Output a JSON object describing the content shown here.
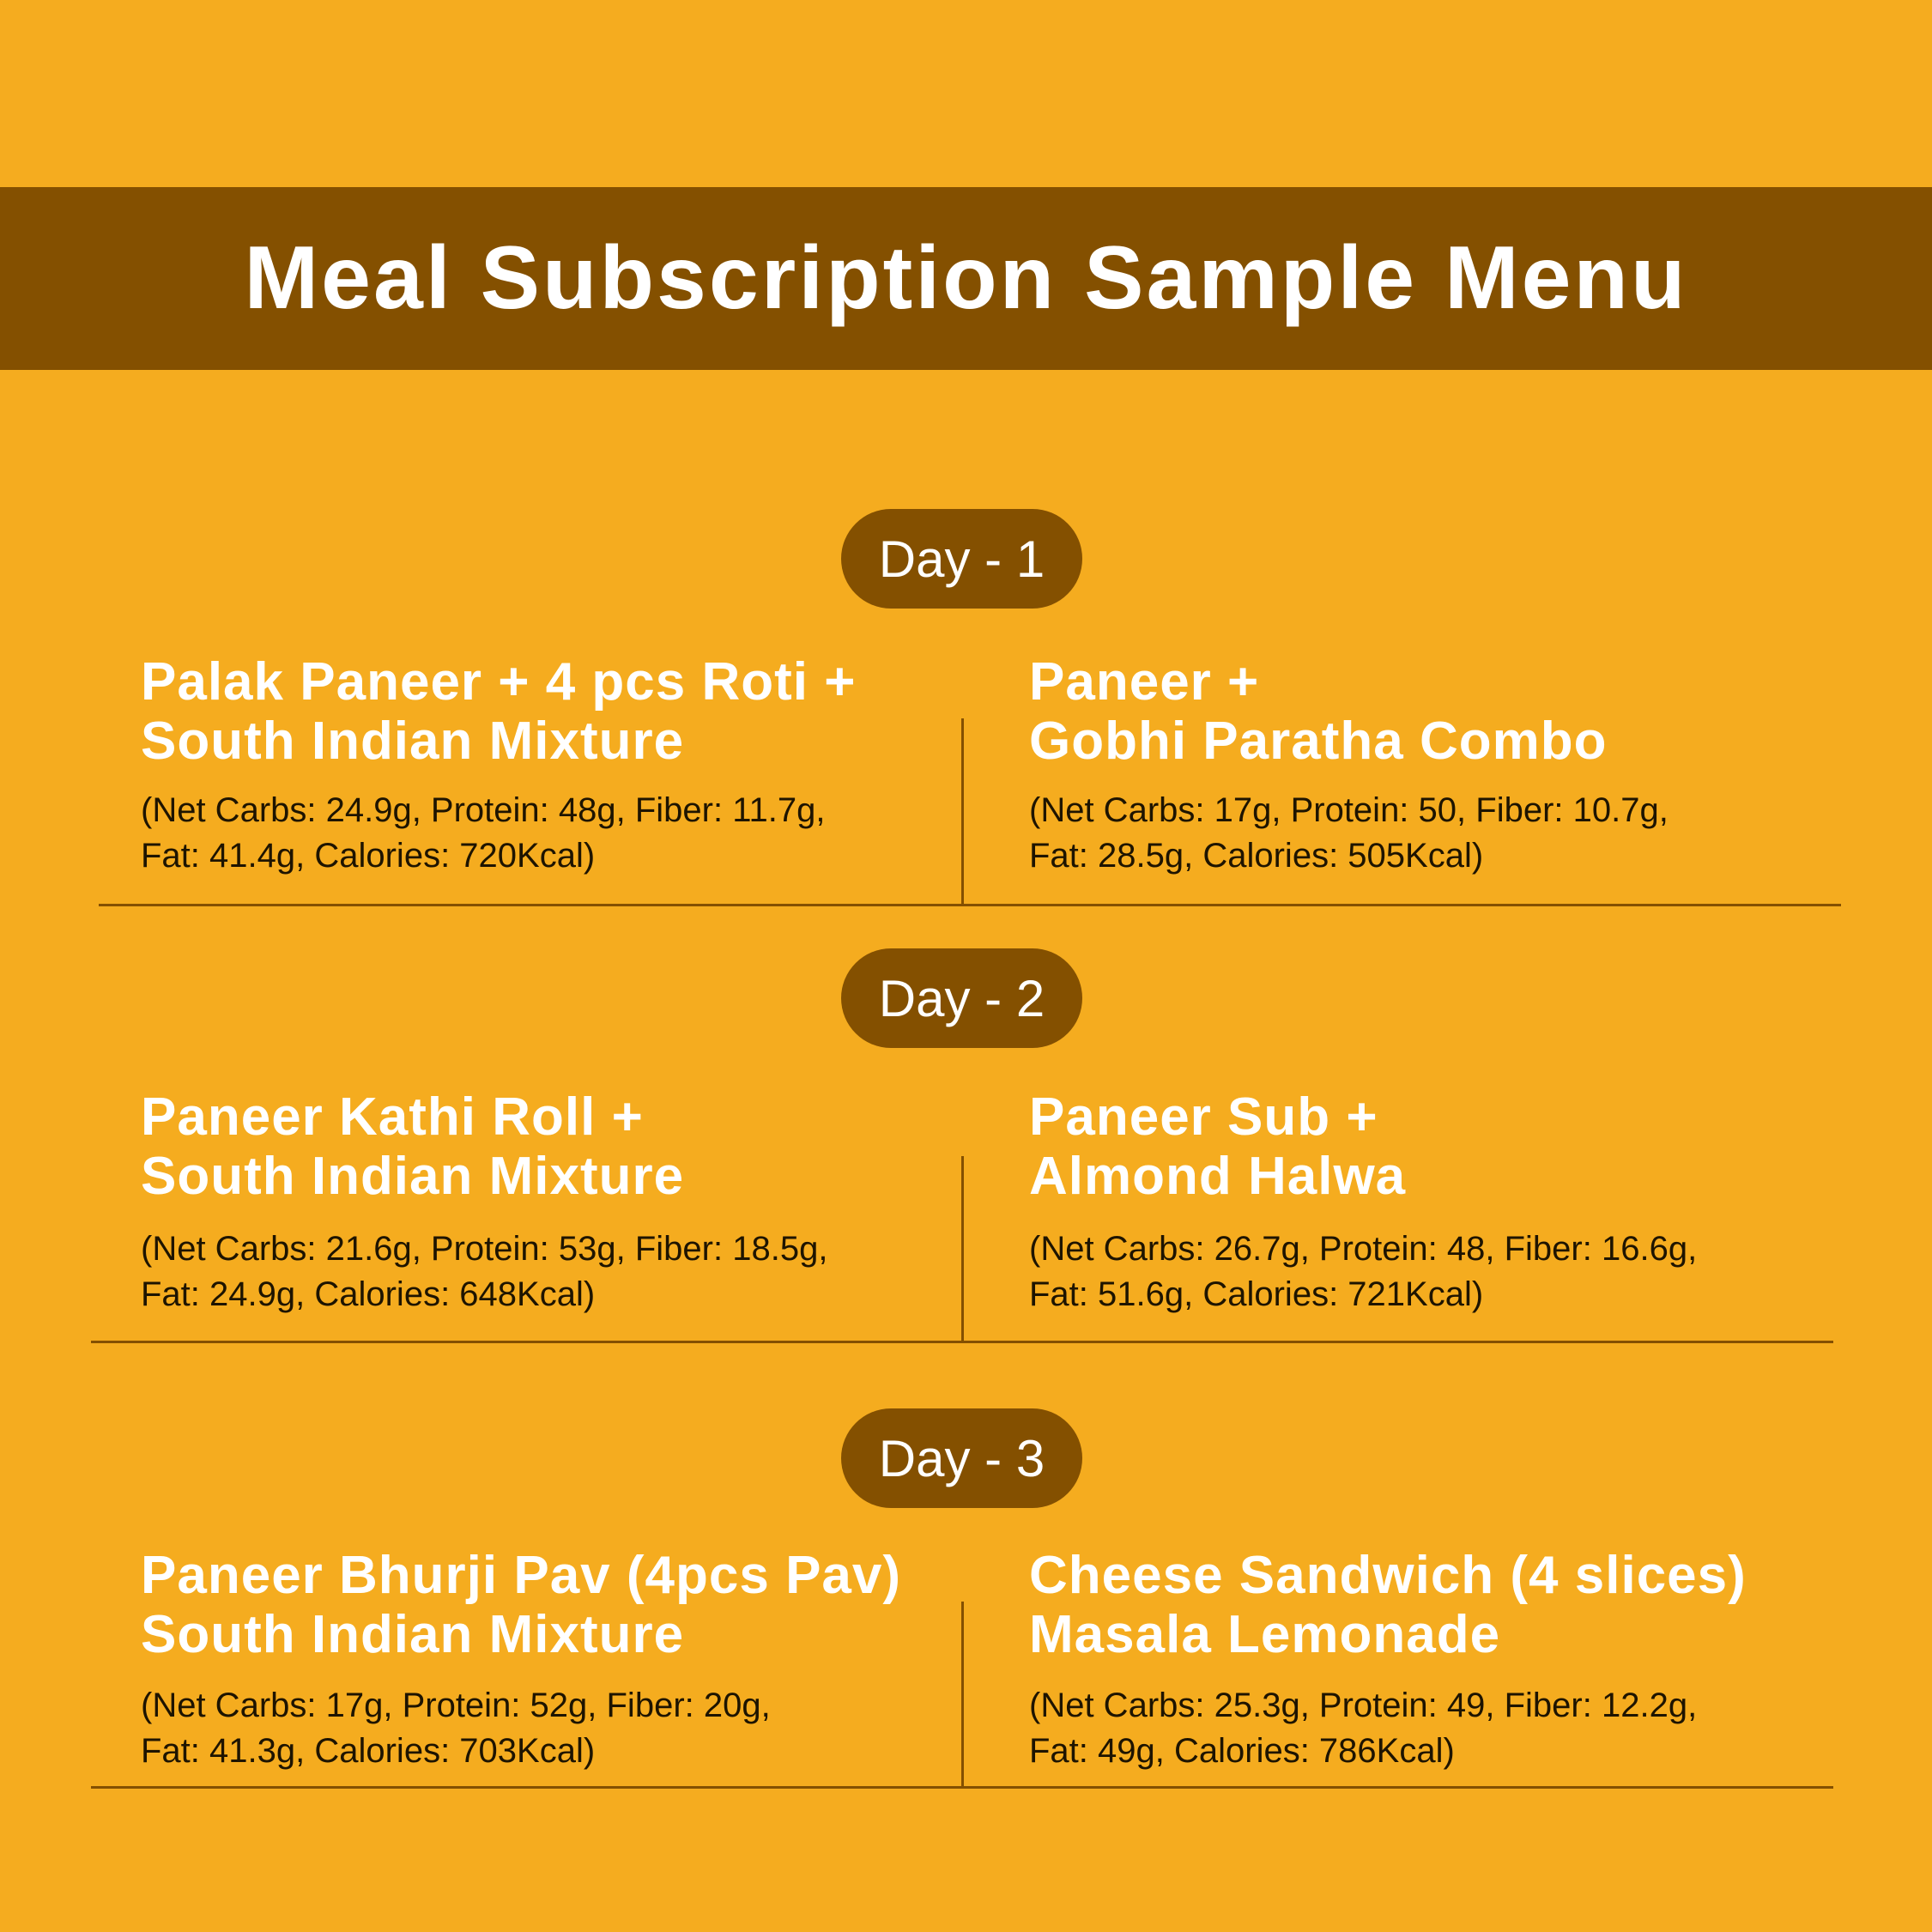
{
  "title": "Meal Subscription Sample Menu",
  "colors": {
    "background": "#F5AC1F",
    "accent": "#845000",
    "title_text": "#FFFFFF"
  },
  "days": [
    {
      "label": "Day - 1",
      "meals": [
        {
          "title_lines": [
            "Palak Paneer + 4 pcs Roti +",
            "South Indian Mixture"
          ],
          "details_lines": [
            "(Net Carbs: 24.9g, Protein: 48g, Fiber: 11.7g,",
            "Fat: 41.4g, Calories: 720Kcal)"
          ]
        },
        {
          "title_lines": [
            "Paneer +",
            "Gobhi Paratha Combo"
          ],
          "details_lines": [
            "(Net Carbs: 17g, Protein: 50, Fiber: 10.7g,",
            "Fat: 28.5g, Calories: 505Kcal)"
          ]
        }
      ]
    },
    {
      "label": "Day - 2",
      "meals": [
        {
          "title_lines": [
            "Paneer Kathi Roll +",
            "South Indian Mixture"
          ],
          "details_lines": [
            "(Net Carbs: 21.6g, Protein: 53g, Fiber: 18.5g,",
            "Fat: 24.9g, Calories: 648Kcal)"
          ]
        },
        {
          "title_lines": [
            "Paneer Sub +",
            "Almond Halwa"
          ],
          "details_lines": [
            "(Net Carbs: 26.7g, Protein: 48, Fiber: 16.6g,",
            "Fat: 51.6g, Calories: 721Kcal)"
          ]
        }
      ]
    },
    {
      "label": "Day - 3",
      "meals": [
        {
          "title_lines": [
            "Paneer Bhurji Pav (4pcs Pav)",
            "South Indian Mixture"
          ],
          "details_lines": [
            "(Net Carbs: 17g, Protein: 52g, Fiber: 20g,",
            "Fat: 41.3g, Calories: 703Kcal)"
          ]
        },
        {
          "title_lines": [
            "Cheese Sandwich (4 slices)",
            "Masala Lemonade"
          ],
          "details_lines": [
            "(Net Carbs: 25.3g, Protein: 49, Fiber: 12.2g,",
            "Fat: 49g, Calories: 786Kcal)"
          ]
        }
      ]
    }
  ]
}
